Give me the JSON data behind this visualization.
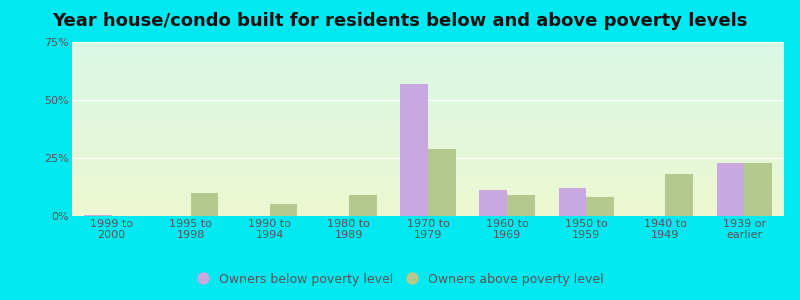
{
  "title": "Year house/condo built for residents below and above poverty levels",
  "categories": [
    "1999 to\n2000",
    "1995 to\n1998",
    "1990 to\n1994",
    "1980 to\n1989",
    "1970 to\n1979",
    "1960 to\n1969",
    "1950 to\n1959",
    "1940 to\n1949",
    "1939 or\nearlier"
  ],
  "below_poverty": [
    0.5,
    0.0,
    0.0,
    0.0,
    57.0,
    11.0,
    12.0,
    0.0,
    23.0
  ],
  "above_poverty": [
    0.0,
    10.0,
    5.0,
    9.0,
    29.0,
    9.0,
    8.0,
    18.0,
    23.0
  ],
  "below_color": "#c9a8e0",
  "above_color": "#b5c98e",
  "ylim": [
    0,
    75
  ],
  "yticks": [
    0,
    25,
    50,
    75
  ],
  "ytick_labels": [
    "0%",
    "25%",
    "50%",
    "75%"
  ],
  "bar_width": 0.35,
  "outer_bg": "#00e8f0",
  "plot_bg_topleft": "#d0f0e8",
  "plot_bg_topright": "#e0f8f5",
  "plot_bg_bottom": "#eef5d0",
  "legend_below_label": "Owners below poverty level",
  "legend_above_label": "Owners above poverty level",
  "title_fontsize": 13,
  "tick_fontsize": 8,
  "legend_fontsize": 9,
  "tick_color": "#555555",
  "grid_color": "#e0e8d8"
}
